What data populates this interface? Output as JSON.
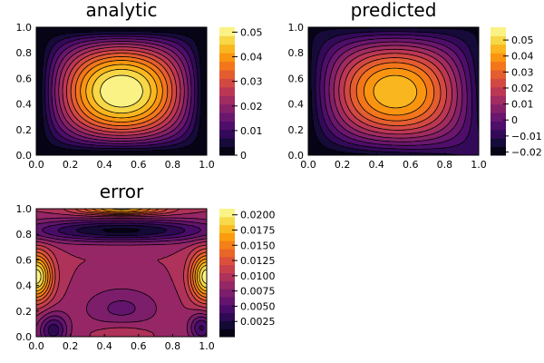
{
  "chart_data": [
    {
      "type": "heatmap",
      "subtype": "filled-contour",
      "title": "analytic",
      "colormap": "inferno",
      "function": "analytic",
      "xlim": [
        0,
        1
      ],
      "ylim": [
        0,
        1
      ],
      "xticks": [
        "0.0",
        "0.2",
        "0.4",
        "0.6",
        "0.8",
        "1.0"
      ],
      "yticks": [
        "0.0",
        "0.2",
        "0.4",
        "0.6",
        "0.8",
        "1.0"
      ],
      "clim": [
        0,
        0.052
      ],
      "levels": 15,
      "colorbar_ticks": [
        {
          "value": 0,
          "label": "0"
        },
        {
          "value": 0.01,
          "label": "0.01"
        },
        {
          "value": 0.02,
          "label": "0.02"
        },
        {
          "value": 0.03,
          "label": "0.03"
        },
        {
          "value": 0.04,
          "label": "0.04"
        },
        {
          "value": 0.05,
          "label": "0.05"
        }
      ],
      "grid": false
    },
    {
      "type": "heatmap",
      "subtype": "filled-contour",
      "title": "predicted",
      "colormap": "inferno",
      "function": "predicted",
      "xlim": [
        0,
        1
      ],
      "ylim": [
        0,
        1
      ],
      "xticks": [
        "0.0",
        "0.2",
        "0.4",
        "0.6",
        "0.8",
        "1.0"
      ],
      "yticks": [
        "0.0",
        "0.2",
        "0.4",
        "0.6",
        "0.8",
        "1.0"
      ],
      "clim": [
        -0.022,
        0.058
      ],
      "levels": 15,
      "colorbar_ticks": [
        {
          "value": -0.02,
          "label": "−0.02"
        },
        {
          "value": -0.01,
          "label": "−0.01"
        },
        {
          "value": 0,
          "label": "0"
        },
        {
          "value": 0.01,
          "label": "0.01"
        },
        {
          "value": 0.02,
          "label": "0.02"
        },
        {
          "value": 0.03,
          "label": "0.03"
        },
        {
          "value": 0.04,
          "label": "0.04"
        },
        {
          "value": 0.05,
          "label": "0.05"
        }
      ],
      "grid": false
    },
    {
      "type": "heatmap",
      "subtype": "filled-contour",
      "title": "error",
      "colormap": "inferno",
      "function": "error",
      "xlim": [
        0,
        1
      ],
      "ylim": [
        0,
        1
      ],
      "xticks": [
        "0.0",
        "0.2",
        "0.4",
        "0.6",
        "0.8",
        "1.0"
      ],
      "yticks": [
        "0.0",
        "0.2",
        "0.4",
        "0.6",
        "0.8",
        "1.0"
      ],
      "clim": [
        0,
        0.021
      ],
      "levels": 16,
      "colorbar_ticks": [
        {
          "value": 0.0025,
          "label": "0.0025"
        },
        {
          "value": 0.005,
          "label": "0.0050"
        },
        {
          "value": 0.0075,
          "label": "0.0075"
        },
        {
          "value": 0.01,
          "label": "0.0100"
        },
        {
          "value": 0.0125,
          "label": "0.0125"
        },
        {
          "value": 0.015,
          "label": "0.0150"
        },
        {
          "value": 0.0175,
          "label": "0.0175"
        },
        {
          "value": 0.02,
          "label": "0.0200"
        }
      ],
      "grid": false
    }
  ]
}
